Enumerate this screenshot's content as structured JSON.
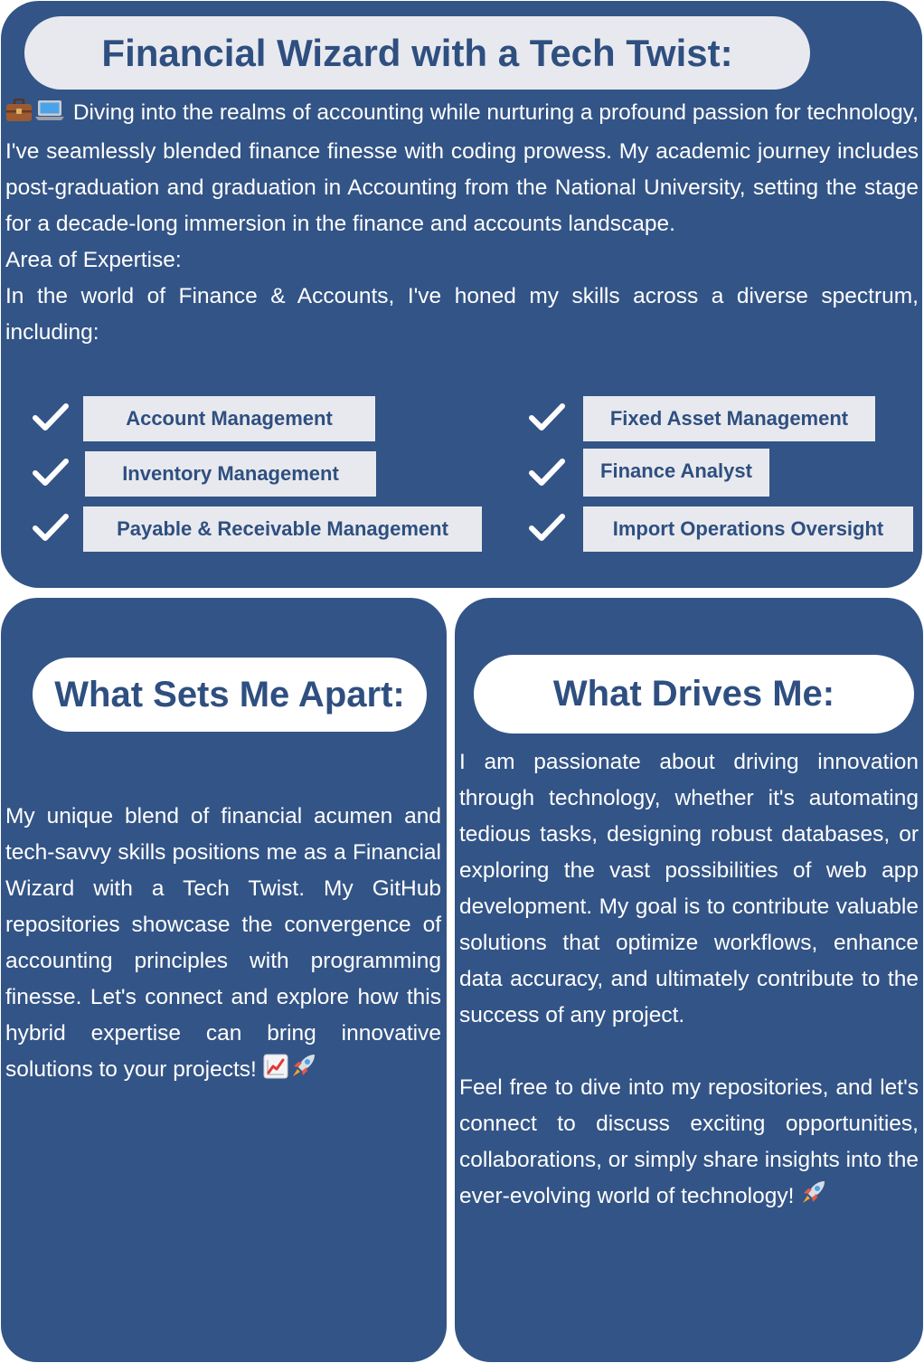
{
  "header": {
    "title": "Financial Wizard with a Tech Twist:"
  },
  "intro": {
    "icons": [
      "briefcase-icon",
      "laptop-icon"
    ],
    "paragraph": "Diving into the realms of accounting while nurturing a profound passion for technology, I've seamlessly blended finance finesse with coding prowess. My academic journey includes post-graduation and graduation in Accounting from the National University, setting the stage for a decade-long immersion in the finance and accounts landscape.",
    "expertise_heading": "Area of Expertise:",
    "expertise_intro": "In the world of Finance & Accounts, I've honed my skills across a diverse spectrum, including:"
  },
  "skills": [
    "Account Management",
    "Fixed Asset Management",
    "Inventory Management",
    "Finance Analyst",
    "Payable & Receivable Management",
    "Import Operations Oversight"
  ],
  "apart": {
    "title": "What Sets Me Apart:",
    "text": "My unique blend of financial acumen and tech-savvy skills positions me as a Financial Wizard with a Tech Twist. My GitHub repositories showcase the convergence of accounting principles with programming finesse. Let's connect and explore how this hybrid expertise can bring innovative solutions to your projects!",
    "icons": [
      "chart-increasing-icon",
      "rocket-icon"
    ]
  },
  "drives": {
    "title": "What Drives Me:",
    "text1": "I am passionate about driving innovation through technology, whether it's automating tedious tasks, designing robust databases, or exploring the vast possibilities of web app development. My goal is to contribute valuable solutions that optimize workflows, enhance data accuracy, and ultimately contribute to the success of any project.",
    "text2": "Feel free to dive into my repositories, and let's connect to discuss exciting opportunities, collaborations, or simply share insights into the ever-evolving world of technology!",
    "icons": [
      "rocket-icon"
    ]
  },
  "colors": {
    "panel": "#335486",
    "pill": "#e8e9ee",
    "title_text": "#2e4f80",
    "text": "#ffffff"
  }
}
